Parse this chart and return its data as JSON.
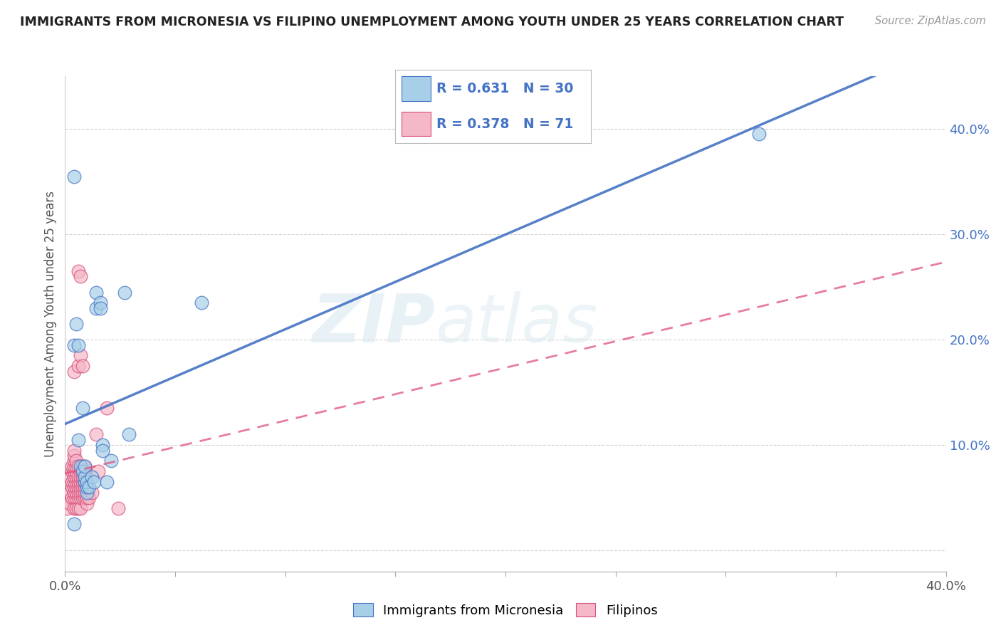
{
  "title": "IMMIGRANTS FROM MICRONESIA VS FILIPINO UNEMPLOYMENT AMONG YOUTH UNDER 25 YEARS CORRELATION CHART",
  "source": "Source: ZipAtlas.com",
  "ylabel": "Unemployment Among Youth under 25 years",
  "xlim": [
    0.0,
    0.4
  ],
  "ylim": [
    -0.02,
    0.45
  ],
  "legend_label1": "Immigrants from Micronesia",
  "legend_label2": "Filipinos",
  "R1": 0.631,
  "N1": 30,
  "R2": 0.378,
  "N2": 71,
  "color_blue": "#a8cfe8",
  "color_pink": "#f4b8c8",
  "color_blue_dark": "#4472c4",
  "color_pink_dark": "#d94f7a",
  "color_blue_line": "#4472c4",
  "color_pink_line": "#e05080",
  "scatter_blue": [
    [
      0.004,
      0.355
    ],
    [
      0.004,
      0.195
    ],
    [
      0.005,
      0.215
    ],
    [
      0.006,
      0.195
    ],
    [
      0.006,
      0.105
    ],
    [
      0.007,
      0.08
    ],
    [
      0.008,
      0.135
    ],
    [
      0.008,
      0.075
    ],
    [
      0.009,
      0.065
    ],
    [
      0.009,
      0.07
    ],
    [
      0.009,
      0.08
    ],
    [
      0.01,
      0.055
    ],
    [
      0.01,
      0.06
    ],
    [
      0.01,
      0.065
    ],
    [
      0.011,
      0.06
    ],
    [
      0.012,
      0.07
    ],
    [
      0.013,
      0.065
    ],
    [
      0.014,
      0.245
    ],
    [
      0.014,
      0.23
    ],
    [
      0.016,
      0.235
    ],
    [
      0.016,
      0.23
    ],
    [
      0.017,
      0.1
    ],
    [
      0.017,
      0.095
    ],
    [
      0.019,
      0.065
    ],
    [
      0.021,
      0.085
    ],
    [
      0.027,
      0.245
    ],
    [
      0.029,
      0.11
    ],
    [
      0.062,
      0.235
    ],
    [
      0.315,
      0.395
    ],
    [
      0.004,
      0.025
    ]
  ],
  "scatter_pink": [
    [
      0.001,
      0.04
    ],
    [
      0.002,
      0.045
    ],
    [
      0.002,
      0.055
    ],
    [
      0.002,
      0.07
    ],
    [
      0.003,
      0.05
    ],
    [
      0.003,
      0.06
    ],
    [
      0.003,
      0.065
    ],
    [
      0.003,
      0.075
    ],
    [
      0.003,
      0.08
    ],
    [
      0.004,
      0.04
    ],
    [
      0.004,
      0.05
    ],
    [
      0.004,
      0.055
    ],
    [
      0.004,
      0.06
    ],
    [
      0.004,
      0.065
    ],
    [
      0.004,
      0.07
    ],
    [
      0.004,
      0.075
    ],
    [
      0.004,
      0.08
    ],
    [
      0.004,
      0.085
    ],
    [
      0.004,
      0.09
    ],
    [
      0.004,
      0.095
    ],
    [
      0.004,
      0.17
    ],
    [
      0.005,
      0.04
    ],
    [
      0.005,
      0.05
    ],
    [
      0.005,
      0.055
    ],
    [
      0.005,
      0.06
    ],
    [
      0.005,
      0.065
    ],
    [
      0.005,
      0.07
    ],
    [
      0.005,
      0.075
    ],
    [
      0.005,
      0.08
    ],
    [
      0.005,
      0.085
    ],
    [
      0.006,
      0.04
    ],
    [
      0.006,
      0.05
    ],
    [
      0.006,
      0.055
    ],
    [
      0.006,
      0.06
    ],
    [
      0.006,
      0.065
    ],
    [
      0.006,
      0.07
    ],
    [
      0.006,
      0.08
    ],
    [
      0.006,
      0.175
    ],
    [
      0.006,
      0.265
    ],
    [
      0.007,
      0.04
    ],
    [
      0.007,
      0.05
    ],
    [
      0.007,
      0.055
    ],
    [
      0.007,
      0.06
    ],
    [
      0.007,
      0.065
    ],
    [
      0.007,
      0.07
    ],
    [
      0.007,
      0.075
    ],
    [
      0.007,
      0.185
    ],
    [
      0.007,
      0.26
    ],
    [
      0.008,
      0.05
    ],
    [
      0.008,
      0.055
    ],
    [
      0.008,
      0.06
    ],
    [
      0.008,
      0.065
    ],
    [
      0.008,
      0.07
    ],
    [
      0.008,
      0.075
    ],
    [
      0.008,
      0.08
    ],
    [
      0.008,
      0.175
    ],
    [
      0.009,
      0.05
    ],
    [
      0.009,
      0.055
    ],
    [
      0.009,
      0.06
    ],
    [
      0.009,
      0.065
    ],
    [
      0.009,
      0.07
    ],
    [
      0.009,
      0.075
    ],
    [
      0.009,
      0.08
    ],
    [
      0.01,
      0.045
    ],
    [
      0.01,
      0.05
    ],
    [
      0.011,
      0.05
    ],
    [
      0.012,
      0.055
    ],
    [
      0.014,
      0.11
    ],
    [
      0.015,
      0.075
    ],
    [
      0.019,
      0.135
    ],
    [
      0.024,
      0.04
    ]
  ],
  "watermark_zip": "ZIP",
  "watermark_atlas": "atlas",
  "background_color": "#ffffff",
  "grid_color": "#d0d0d0"
}
